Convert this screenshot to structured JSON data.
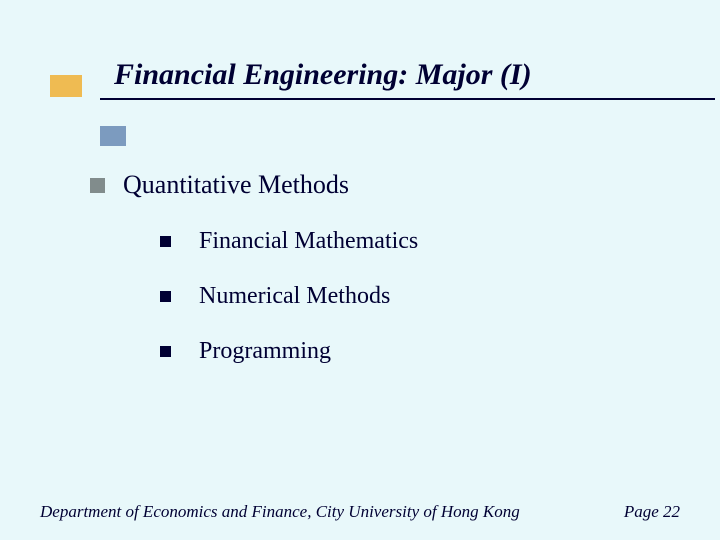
{
  "colors": {
    "background": "#e8f8fa",
    "title_text": "#000033",
    "underline": "#000033",
    "bullet_orange": "#efbb52",
    "bullet_blue": "#7c9bbf",
    "main_bullet": "#818c8c",
    "sub_bullet": "#000033",
    "body_text": "#000033",
    "footer_text": "#000033"
  },
  "typography": {
    "font_family": "Times New Roman",
    "title_fontsize": 30,
    "title_italic": true,
    "title_bold": true,
    "main_fontsize": 26,
    "sub_fontsize": 24,
    "footer_fontsize": 17,
    "footer_italic": true
  },
  "title": "Financial Engineering: Major (I)",
  "main": {
    "label": "Quantitative Methods",
    "items": [
      {
        "label": "Financial Mathematics"
      },
      {
        "label": "Numerical Methods"
      },
      {
        "label": "Programming"
      }
    ]
  },
  "footer": {
    "left": "Department of Economics and Finance, City University of Hong Kong",
    "right": "Page 22"
  }
}
